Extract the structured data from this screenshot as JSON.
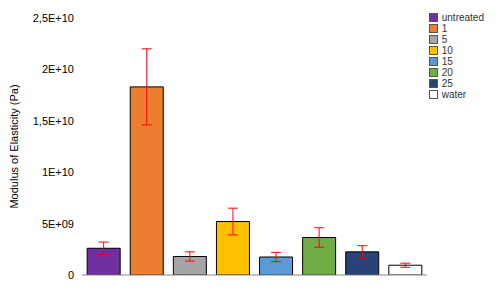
{
  "chart_data": {
    "type": "bar",
    "y_label": "Modulus of Elasticity (Pa)",
    "categories": [
      "untreated",
      "1",
      "5",
      "10",
      "15",
      "20",
      "25",
      "water"
    ],
    "values": [
      2600000000,
      18300000000,
      1800000000,
      5200000000,
      1750000000,
      3650000000,
      2250000000,
      950000000
    ],
    "errors": [
      600000000,
      3700000000,
      450000000,
      1300000000,
      450000000,
      950000000,
      600000000,
      200000000
    ],
    "colors": [
      "#7030a0",
      "#ed7d31",
      "#a5a5a5",
      "#ffc000",
      "#5b9bd5",
      "#70ad47",
      "#264478",
      "#ffffff"
    ],
    "ylim": [
      0,
      25000000000
    ],
    "yticks": [
      0,
      {
        "value": 5000000000,
        "label": "5E+09"
      },
      {
        "value": 10000000000,
        "label": "1E+10"
      },
      {
        "value": 15000000000,
        "label": "1,5E+10"
      },
      {
        "value": 20000000000,
        "label": "2E+10"
      },
      {
        "value": 25000000000,
        "label": "2,5E+10"
      }
    ],
    "legend": "upper right",
    "tick_labels": "y",
    "grid": false
  }
}
